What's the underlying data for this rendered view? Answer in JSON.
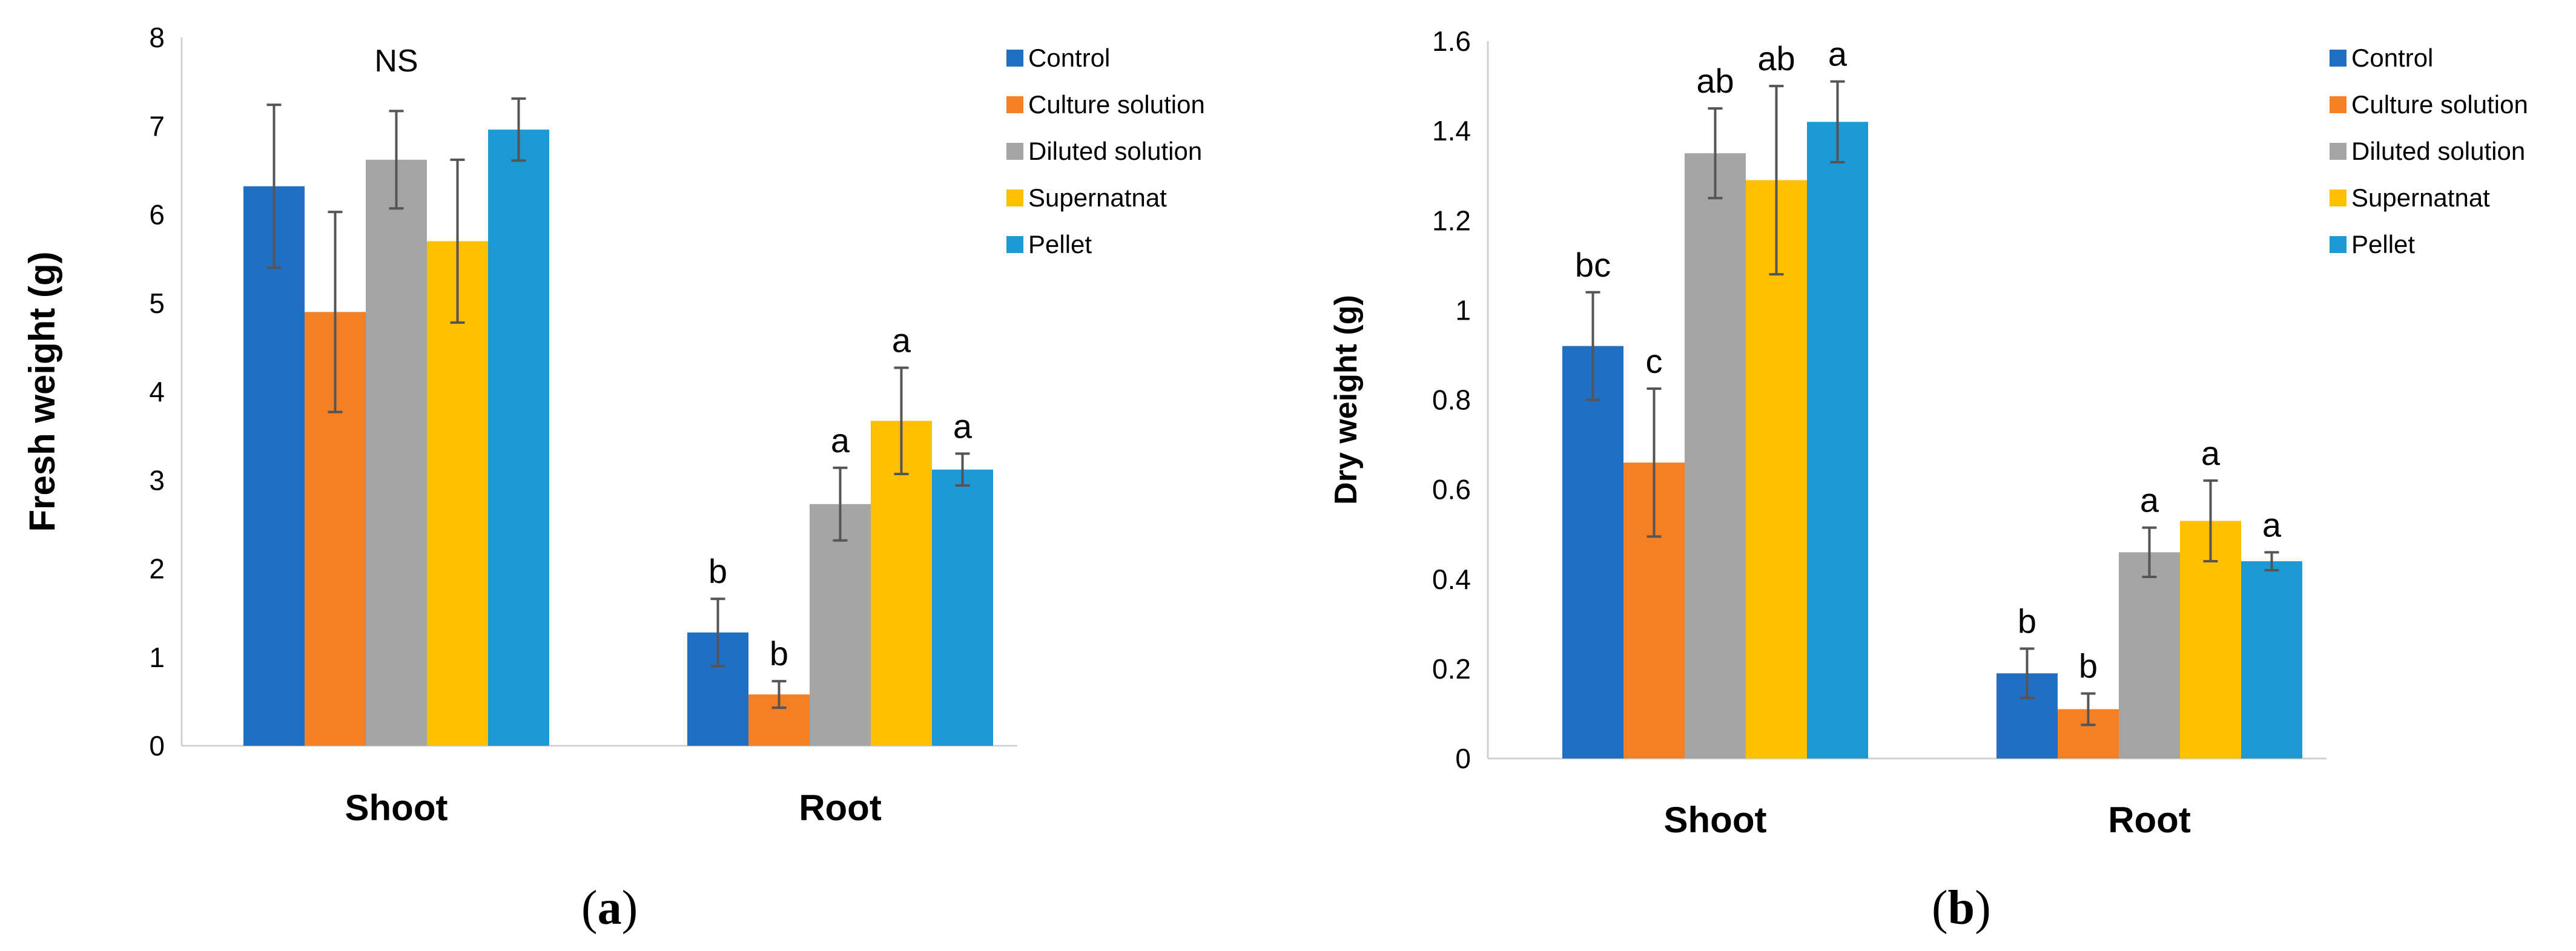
{
  "chart_data": [
    {
      "type": "bar",
      "panel_label": "a",
      "ylabel": "Fresh weight (g)",
      "xlabel": "",
      "ylim": [
        0,
        8
      ],
      "yticks": [
        "0",
        "1",
        "2",
        "3",
        "4",
        "5",
        "6",
        "7",
        "8"
      ],
      "ytick_values": [
        0,
        1,
        2,
        3,
        4,
        5,
        6,
        7,
        8
      ],
      "categories": [
        "Shoot",
        "Root"
      ],
      "group_annotations": [
        "NS",
        ""
      ],
      "series": [
        {
          "name": "Control",
          "color": "#1F6FC5",
          "values": [
            6.32,
            1.28
          ],
          "errors": [
            0.92,
            0.38
          ],
          "letters": [
            "",
            "b"
          ]
        },
        {
          "name": "Culture solution",
          "color": "#F47F24",
          "values": [
            4.9,
            0.58
          ],
          "errors": [
            1.13,
            0.15
          ],
          "letters": [
            "",
            "b"
          ]
        },
        {
          "name": "Diluted solution",
          "color": "#A5A5A5",
          "values": [
            6.62,
            2.73
          ],
          "errors": [
            0.55,
            0.41
          ],
          "letters": [
            "",
            "a"
          ]
        },
        {
          "name": "Supernatnat",
          "color": "#FFC000",
          "values": [
            5.7,
            3.67
          ],
          "errors": [
            0.92,
            0.6
          ],
          "letters": [
            "",
            "a"
          ]
        },
        {
          "name": "Pellet",
          "color": "#1C9AD6",
          "values": [
            6.96,
            3.12
          ],
          "errors": [
            0.35,
            0.18
          ],
          "letters": [
            "",
            "a"
          ]
        }
      ],
      "legend": "top-right",
      "grid": false
    },
    {
      "type": "bar",
      "panel_label": "b",
      "ylabel": "Dry weight (g)",
      "xlabel": "",
      "ylim": [
        0,
        1.6
      ],
      "yticks": [
        "0",
        "0.2",
        "0.4",
        "0.6",
        "0.8",
        "1",
        "1.2",
        "1.4",
        "1.6"
      ],
      "ytick_values": [
        0,
        0.2,
        0.4,
        0.6,
        0.8,
        1,
        1.2,
        1.4,
        1.6
      ],
      "categories": [
        "Shoot",
        "Root"
      ],
      "group_annotations": [
        "",
        ""
      ],
      "series": [
        {
          "name": "Control",
          "color": "#1F6FC5",
          "values": [
            0.92,
            0.19
          ],
          "errors": [
            0.12,
            0.055
          ],
          "letters": [
            "bc",
            "b"
          ]
        },
        {
          "name": "Culture solution",
          "color": "#F47F24",
          "values": [
            0.66,
            0.11
          ],
          "errors": [
            0.165,
            0.035
          ],
          "letters": [
            "c",
            "b"
          ]
        },
        {
          "name": "Diluted solution",
          "color": "#A5A5A5",
          "values": [
            1.35,
            0.46
          ],
          "errors": [
            0.1,
            0.055
          ],
          "letters": [
            "ab",
            "a"
          ]
        },
        {
          "name": "Supernatnat",
          "color": "#FFC000",
          "values": [
            1.29,
            0.53
          ],
          "errors": [
            0.21,
            0.09
          ],
          "letters": [
            "ab",
            "a"
          ]
        },
        {
          "name": "Pellet",
          "color": "#1C9AD6",
          "values": [
            1.42,
            0.44
          ],
          "errors": [
            0.09,
            0.02
          ],
          "letters": [
            "a",
            "a"
          ]
        }
      ],
      "legend": "top-right",
      "grid": false
    }
  ]
}
